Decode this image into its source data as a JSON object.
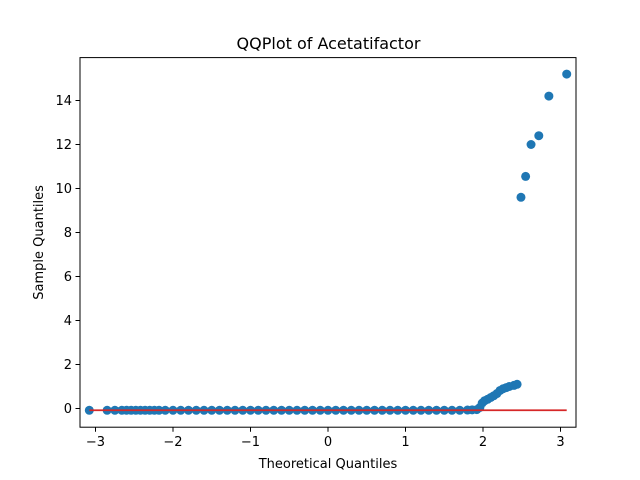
{
  "chart_data": {
    "type": "scatter",
    "title": "QQPlot of Acetatifactor",
    "xlabel": "Theoretical Quantiles",
    "ylabel": "Sample Quantiles",
    "xlim": [
      -3.2,
      3.2
    ],
    "ylim": [
      -0.85,
      15.95
    ],
    "xticks": [
      -3,
      -2,
      -1,
      0,
      1,
      2,
      3
    ],
    "yticks": [
      0,
      2,
      4,
      6,
      8,
      10,
      12,
      14
    ],
    "grid": false,
    "colors": {
      "points": "#1f77b4",
      "line": "#d62728"
    },
    "reference_line": {
      "x": [
        -3.08,
        3.08
      ],
      "y": [
        -0.08,
        -0.08
      ]
    },
    "points": {
      "x": [
        -3.08,
        -2.85,
        -2.75,
        -2.66,
        -2.6,
        -2.54,
        -2.48,
        -2.42,
        -2.36,
        -2.3,
        -2.24,
        -2.18,
        -2.1,
        -2.0,
        -1.9,
        -1.8,
        -1.7,
        -1.6,
        -1.5,
        -1.4,
        -1.3,
        -1.2,
        -1.1,
        -1.0,
        -0.9,
        -0.8,
        -0.7,
        -0.6,
        -0.5,
        -0.4,
        -0.3,
        -0.2,
        -0.1,
        0.0,
        0.1,
        0.2,
        0.3,
        0.4,
        0.5,
        0.6,
        0.7,
        0.8,
        0.9,
        1.0,
        1.1,
        1.2,
        1.3,
        1.4,
        1.5,
        1.6,
        1.7,
        1.8,
        1.86,
        1.92,
        1.96,
        1.99,
        2.02,
        2.06,
        2.1,
        2.14,
        2.18,
        2.22,
        2.26,
        2.3,
        2.34,
        2.4,
        2.44,
        2.49,
        2.55,
        2.62,
        2.72,
        2.85,
        3.08
      ],
      "y": [
        -0.08,
        -0.08,
        -0.08,
        -0.08,
        -0.08,
        -0.08,
        -0.08,
        -0.08,
        -0.08,
        -0.08,
        -0.08,
        -0.08,
        -0.08,
        -0.08,
        -0.08,
        -0.08,
        -0.08,
        -0.08,
        -0.08,
        -0.08,
        -0.08,
        -0.08,
        -0.08,
        -0.08,
        -0.08,
        -0.08,
        -0.08,
        -0.08,
        -0.08,
        -0.08,
        -0.08,
        -0.08,
        -0.08,
        -0.08,
        -0.08,
        -0.08,
        -0.08,
        -0.08,
        -0.08,
        -0.08,
        -0.08,
        -0.08,
        -0.08,
        -0.08,
        -0.08,
        -0.08,
        -0.08,
        -0.08,
        -0.08,
        -0.08,
        -0.08,
        -0.07,
        -0.06,
        -0.05,
        0.05,
        0.25,
        0.35,
        0.42,
        0.5,
        0.58,
        0.68,
        0.82,
        0.9,
        0.95,
        1.0,
        1.05,
        1.1,
        9.6,
        10.55,
        12.0,
        12.4,
        14.2,
        15.2
      ]
    }
  }
}
